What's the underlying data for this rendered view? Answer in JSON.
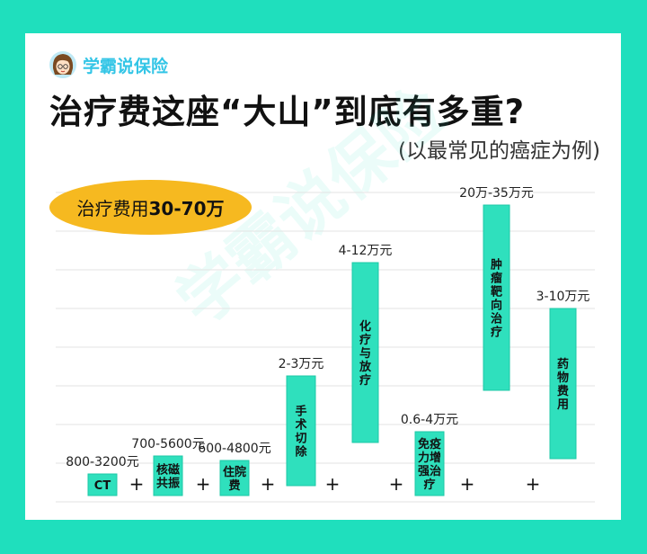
{
  "brand": {
    "name": "学霸说保险",
    "avatar_icon": "cartoon-girl-avatar-icon"
  },
  "header": {
    "title": "治疗费这座“大山”到底有多重?",
    "subtitle": "(以最常见的癌症为例)"
  },
  "badge": {
    "prefix": "治疗费用",
    "amount": "30-70万"
  },
  "watermark": "学霸说保险",
  "colors": {
    "background": "#1fdfbd",
    "bar": "#2fe0bd",
    "bar_stroke": "#1ec9a7",
    "badge": "#f6b920",
    "brand": "#33c5e6"
  },
  "chart_data": {
    "type": "bar",
    "title": "治疗费这座“大山”到底有多重?",
    "subtitle": "(以最常见的癌症为例)",
    "note": "治疗费用30-70万",
    "separator": "+",
    "categories": [
      "CT",
      "核磁共振",
      "住院费",
      "手术切除",
      "化疗与放疗",
      "免疫力增强治疗",
      "肿瘤靶向治疗",
      "药物费用"
    ],
    "ranges": [
      {
        "category": "CT",
        "label": "800-3200元",
        "min": 800,
        "max": 3200,
        "unit": "元"
      },
      {
        "category": "核磁共振",
        "label": "700-5600元",
        "min": 700,
        "max": 5600,
        "unit": "元"
      },
      {
        "category": "住院费",
        "label": "600-4800元",
        "min": 600,
        "max": 4800,
        "unit": "元"
      },
      {
        "category": "手术切除",
        "label": "2-3万元",
        "min": 20000,
        "max": 30000,
        "unit": "元"
      },
      {
        "category": "化疗与放疗",
        "label": "4-12万元",
        "min": 40000,
        "max": 120000,
        "unit": "元"
      },
      {
        "category": "免疫力增强治疗",
        "label": "0.6-4万元",
        "min": 6000,
        "max": 40000,
        "unit": "元"
      },
      {
        "category": "肿瘤靶向治疗",
        "label": "20万-35万元",
        "min": 200000,
        "max": 350000,
        "unit": "元"
      },
      {
        "category": "药物费用",
        "label": "3-10万元",
        "min": 30000,
        "max": 100000,
        "unit": "元"
      }
    ],
    "grid": true,
    "legend": "none"
  }
}
